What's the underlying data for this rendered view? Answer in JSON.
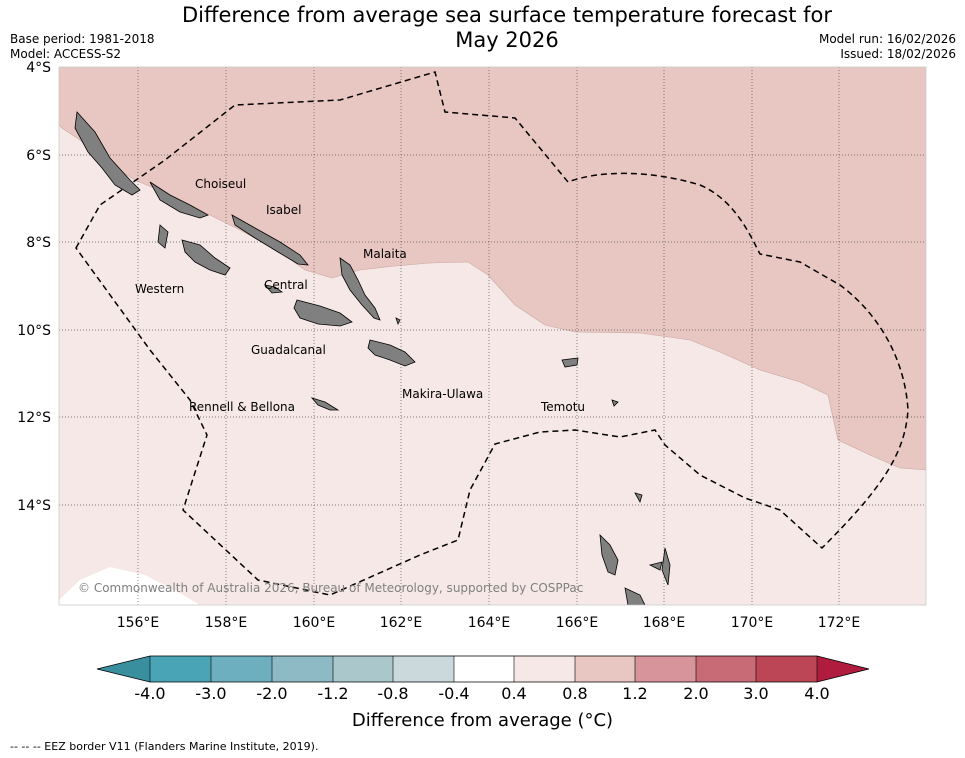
{
  "title_line1": "Difference from average sea surface temperature forecast for",
  "title_line2": "May 2026",
  "base_period": "Base period: 1981-2018",
  "model": "Model: ACCESS-S2",
  "model_run": "Model run: 16/02/2026",
  "issued": "Issued: 18/02/2026",
  "lat_labels": [
    "4°S",
    "6°S",
    "8°S",
    "10°S",
    "12°S",
    "14°S"
  ],
  "lon_labels": [
    "156°E",
    "158°E",
    "160°E",
    "162°E",
    "164°E",
    "166°E",
    "168°E",
    "170°E",
    "172°E"
  ],
  "province_labels": {
    "choiseul": "Choiseul",
    "isabel": "Isabel",
    "malaita": "Malaita",
    "western": "Western",
    "central": "Central",
    "guadalcanal": "Guadalcanal",
    "makira": "Makira-Ulawa",
    "rennell": "Rennell & Bellona",
    "temotu": "Temotu"
  },
  "copyright": "© Commonwealth of Australia 2026, Bureau of Meteorology, supported by COSPPac",
  "colorbar": {
    "ticks": [
      "-4.0",
      "-3.0",
      "-2.0",
      "-1.2",
      "-0.8",
      "-0.4",
      "0.4",
      "0.8",
      "1.2",
      "2.0",
      "3.0",
      "4.0"
    ],
    "colors": [
      "#3a8f9e",
      "#49a5b6",
      "#6eafbf",
      "#8dbac4",
      "#aac8cc",
      "#cbd8dc",
      "#ffffff",
      "#f5e8e6",
      "#e8c6c1",
      "#d7959b",
      "#c96b77",
      "#bd4656",
      "#b01c3e"
    ],
    "label": "Difference from average (°C)"
  },
  "legend_note": "-- -- -- EEZ border V11 (Flanders Marine Institute, 2019).",
  "fill_colors": {
    "low": "#f5e8e6",
    "high": "#e8c6c1",
    "land": "#808080"
  }
}
